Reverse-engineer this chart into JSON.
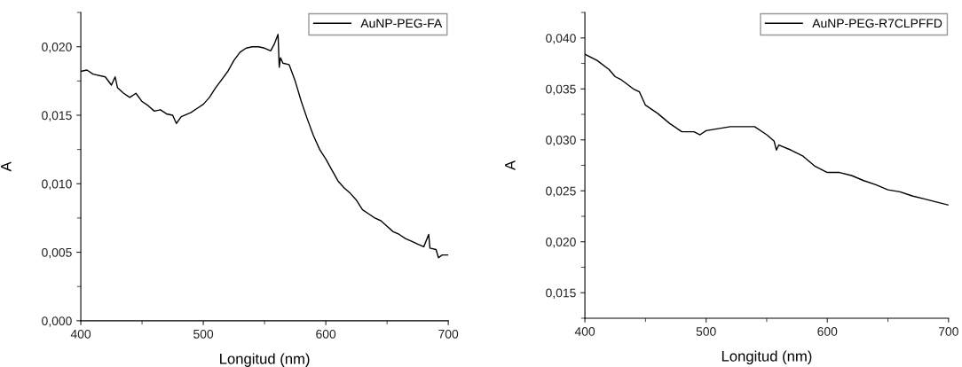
{
  "chart_data": [
    {
      "type": "line",
      "xlabel": "Longitud (nm)",
      "ylabel": "A",
      "legend": "top right",
      "marker": "none",
      "line_style": "solid",
      "grid": false,
      "xlim": [
        400,
        700
      ],
      "xticks": [
        400,
        500,
        600,
        700
      ],
      "ylim": [
        0,
        0.0225
      ],
      "yticks": [
        {
          "value": 0,
          "label": "0,000"
        },
        {
          "value": 0.005,
          "label": "0,005"
        },
        {
          "value": 0.01,
          "label": "0,010"
        },
        {
          "value": 0.015,
          "label": "0,015"
        },
        {
          "value": 0.02,
          "label": "0,020"
        }
      ],
      "series": [
        {
          "name": "AuNP-PEG-FA",
          "color": "#000000",
          "x": [
            400,
            405,
            410,
            420,
            425,
            428,
            430,
            435,
            440,
            445,
            450,
            455,
            460,
            465,
            470,
            475,
            478,
            482,
            490,
            495,
            500,
            505,
            510,
            515,
            520,
            525,
            530,
            535,
            540,
            545,
            550,
            555,
            558,
            561,
            562,
            563,
            565,
            570,
            575,
            580,
            585,
            590,
            595,
            600,
            605,
            610,
            615,
            620,
            625,
            630,
            635,
            640,
            645,
            650,
            655,
            660,
            665,
            670,
            675,
            680,
            684,
            685,
            690,
            692,
            695,
            700
          ],
          "values": [
            0.0182,
            0.0183,
            0.018,
            0.0178,
            0.0172,
            0.0178,
            0.017,
            0.0166,
            0.0163,
            0.0166,
            0.016,
            0.0157,
            0.0153,
            0.0154,
            0.0151,
            0.015,
            0.0144,
            0.0149,
            0.0152,
            0.0155,
            0.0158,
            0.0163,
            0.017,
            0.0176,
            0.0182,
            0.019,
            0.0196,
            0.0199,
            0.02,
            0.02,
            0.0199,
            0.0197,
            0.0202,
            0.0209,
            0.0185,
            0.0192,
            0.0188,
            0.0187,
            0.0175,
            0.016,
            0.0147,
            0.0135,
            0.0125,
            0.0118,
            0.011,
            0.0102,
            0.0097,
            0.0093,
            0.0088,
            0.0081,
            0.0078,
            0.0075,
            0.0073,
            0.0069,
            0.0065,
            0.0063,
            0.006,
            0.0058,
            0.0056,
            0.0054,
            0.0063,
            0.0053,
            0.0052,
            0.0046,
            0.0048,
            0.0048
          ]
        }
      ]
    },
    {
      "type": "line",
      "xlabel": "Longitud (nm)",
      "ylabel": "A",
      "legend": "top right",
      "marker": "none",
      "line_style": "solid",
      "grid": false,
      "xlim": [
        400,
        700
      ],
      "xticks": [
        400,
        500,
        600,
        700
      ],
      "ylim": [
        0.0125,
        0.0425
      ],
      "yticks": [
        {
          "value": 0.015,
          "label": "0,015"
        },
        {
          "value": 0.02,
          "label": "0,020"
        },
        {
          "value": 0.025,
          "label": "0,025"
        },
        {
          "value": 0.03,
          "label": "0,030"
        },
        {
          "value": 0.035,
          "label": "0,035"
        },
        {
          "value": 0.04,
          "label": "0,040"
        }
      ],
      "series": [
        {
          "name": "AuNP-PEG-R7CLPFFD",
          "color": "#000000",
          "x": [
            400,
            410,
            420,
            425,
            430,
            440,
            445,
            450,
            460,
            470,
            480,
            490,
            495,
            500,
            510,
            520,
            530,
            540,
            550,
            556,
            558,
            560,
            570,
            580,
            590,
            600,
            610,
            620,
            630,
            640,
            650,
            660,
            670,
            680,
            690,
            700
          ],
          "values": [
            0.0384,
            0.0378,
            0.0369,
            0.0362,
            0.0359,
            0.035,
            0.0347,
            0.0334,
            0.0326,
            0.0316,
            0.0308,
            0.0308,
            0.0305,
            0.0309,
            0.0311,
            0.0313,
            0.0313,
            0.0313,
            0.0305,
            0.0299,
            0.029,
            0.0295,
            0.029,
            0.0284,
            0.0274,
            0.0268,
            0.0268,
            0.0265,
            0.026,
            0.0256,
            0.0251,
            0.0249,
            0.0245,
            0.0242,
            0.0239,
            0.0236
          ]
        }
      ]
    }
  ]
}
